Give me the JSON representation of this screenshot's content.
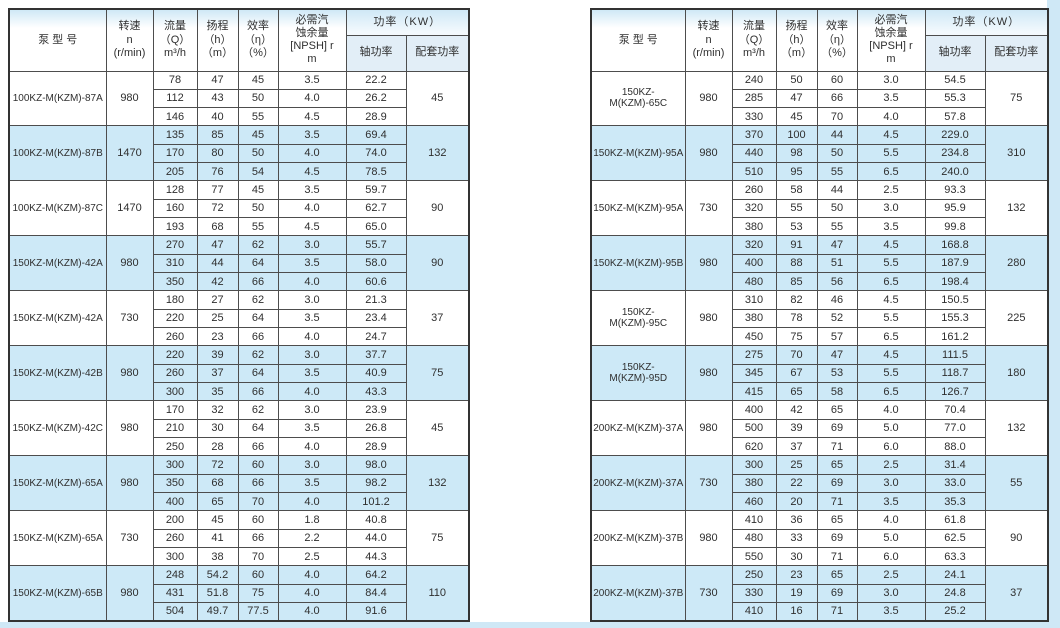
{
  "page": {
    "background_color": "#cfe8f6",
    "content_background": "#ffffff",
    "shaded_row_color": "#cde9f7",
    "subheader_color": "#e2eef7",
    "border_color": "#333333"
  },
  "header": {
    "model": "泵   型   号",
    "speed": "转速\nn\n(r/min)",
    "flow": "流量\n（Q）\nm³/h",
    "head": "扬程\n（h）\n（m）",
    "eff": "效率\n（η）\n（%）",
    "npsh": "必需汽\n蚀余量\n[NPSH] r\nm",
    "power_group": "功率（KW）",
    "shaft_power": "轴功率",
    "matching_power": "配套功率"
  },
  "tables": [
    {
      "name": "left-pump-table",
      "groups": [
        {
          "model": "100KZ-M(KZM)-87A",
          "speed": "980",
          "matching_power": "45",
          "shaded": false,
          "rows": [
            [
              "78",
              "47",
              "45",
              "3.5",
              "22.2"
            ],
            [
              "112",
              "43",
              "50",
              "4.0",
              "26.2"
            ],
            [
              "146",
              "40",
              "55",
              "4.5",
              "28.9"
            ]
          ]
        },
        {
          "model": "100KZ-M(KZM)-87B",
          "speed": "1470",
          "matching_power": "132",
          "shaded": true,
          "rows": [
            [
              "135",
              "85",
              "45",
              "3.5",
              "69.4"
            ],
            [
              "170",
              "80",
              "50",
              "4.0",
              "74.0"
            ],
            [
              "205",
              "76",
              "54",
              "4.5",
              "78.5"
            ]
          ]
        },
        {
          "model": "100KZ-M(KZM)-87C",
          "speed": "1470",
          "matching_power": "90",
          "shaded": false,
          "rows": [
            [
              "128",
              "77",
              "45",
              "3.5",
              "59.7"
            ],
            [
              "160",
              "72",
              "50",
              "4.0",
              "62.7"
            ],
            [
              "193",
              "68",
              "55",
              "4.5",
              "65.0"
            ]
          ]
        },
        {
          "model": "150KZ-M(KZM)-42A",
          "speed": "980",
          "matching_power": "90",
          "shaded": true,
          "rows": [
            [
              "270",
              "47",
              "62",
              "3.0",
              "55.7"
            ],
            [
              "310",
              "44",
              "64",
              "3.5",
              "58.0"
            ],
            [
              "350",
              "42",
              "66",
              "4.0",
              "60.6"
            ]
          ]
        },
        {
          "model": "150KZ-M(KZM)-42A",
          "speed": "730",
          "matching_power": "37",
          "shaded": false,
          "rows": [
            [
              "180",
              "27",
              "62",
              "3.0",
              "21.3"
            ],
            [
              "220",
              "25",
              "64",
              "3.5",
              "23.4"
            ],
            [
              "260",
              "23",
              "66",
              "4.0",
              "24.7"
            ]
          ]
        },
        {
          "model": "150KZ-M(KZM)-42B",
          "speed": "980",
          "matching_power": "75",
          "shaded": true,
          "rows": [
            [
              "220",
              "39",
              "62",
              "3.0",
              "37.7"
            ],
            [
              "260",
              "37",
              "64",
              "3.5",
              "40.9"
            ],
            [
              "300",
              "35",
              "66",
              "4.0",
              "43.3"
            ]
          ]
        },
        {
          "model": "150KZ-M(KZM)-42C",
          "speed": "980",
          "matching_power": "45",
          "shaded": false,
          "rows": [
            [
              "170",
              "32",
              "62",
              "3.0",
              "23.9"
            ],
            [
              "210",
              "30",
              "64",
              "3.5",
              "26.8"
            ],
            [
              "250",
              "28",
              "66",
              "4.0",
              "28.9"
            ]
          ]
        },
        {
          "model": "150KZ-M(KZM)-65A",
          "speed": "980",
          "matching_power": "132",
          "shaded": true,
          "rows": [
            [
              "300",
              "72",
              "60",
              "3.0",
              "98.0"
            ],
            [
              "350",
              "68",
              "66",
              "3.5",
              "98.2"
            ],
            [
              "400",
              "65",
              "70",
              "4.0",
              "101.2"
            ]
          ]
        },
        {
          "model": "150KZ-M(KZM)-65A",
          "speed": "730",
          "matching_power": "75",
          "shaded": false,
          "rows": [
            [
              "200",
              "45",
              "60",
              "1.8",
              "40.8"
            ],
            [
              "260",
              "41",
              "66",
              "2.2",
              "44.0"
            ],
            [
              "300",
              "38",
              "70",
              "2.5",
              "44.3"
            ]
          ]
        },
        {
          "model": "150KZ-M(KZM)-65B",
          "speed": "980",
          "matching_power": "110",
          "shaded": true,
          "rows": [
            [
              "248",
              "54.2",
              "60",
              "4.0",
              "64.2"
            ],
            [
              "431",
              "51.8",
              "75",
              "4.0",
              "84.4"
            ],
            [
              "504",
              "49.7",
              "77.5",
              "4.0",
              "91.6"
            ]
          ]
        }
      ]
    },
    {
      "name": "right-pump-table",
      "groups": [
        {
          "model": "150KZ-M(KZM)-65C",
          "speed": "980",
          "matching_power": "75",
          "shaded": false,
          "rows": [
            [
              "240",
              "50",
              "60",
              "3.0",
              "54.5"
            ],
            [
              "285",
              "47",
              "66",
              "3.5",
              "55.3"
            ],
            [
              "330",
              "45",
              "70",
              "4.0",
              "57.8"
            ]
          ]
        },
        {
          "model": "150KZ-M(KZM)-95A",
          "speed": "980",
          "matching_power": "310",
          "shaded": true,
          "rows": [
            [
              "370",
              "100",
              "44",
              "4.5",
              "229.0"
            ],
            [
              "440",
              "98",
              "50",
              "5.5",
              "234.8"
            ],
            [
              "510",
              "95",
              "55",
              "6.5",
              "240.0"
            ]
          ]
        },
        {
          "model": "150KZ-M(KZM)-95A",
          "speed": "730",
          "matching_power": "132",
          "shaded": false,
          "rows": [
            [
              "260",
              "58",
              "44",
              "2.5",
              "93.3"
            ],
            [
              "320",
              "55",
              "50",
              "3.0",
              "95.9"
            ],
            [
              "380",
              "53",
              "55",
              "3.5",
              "99.8"
            ]
          ]
        },
        {
          "model": "150KZ-M(KZM)-95B",
          "speed": "980",
          "matching_power": "280",
          "shaded": true,
          "rows": [
            [
              "320",
              "91",
              "47",
              "4.5",
              "168.8"
            ],
            [
              "400",
              "88",
              "51",
              "5.5",
              "187.9"
            ],
            [
              "480",
              "85",
              "56",
              "6.5",
              "198.4"
            ]
          ]
        },
        {
          "model": "150KZ-M(KZM)-95C",
          "speed": "980",
          "matching_power": "225",
          "shaded": false,
          "rows": [
            [
              "310",
              "82",
              "46",
              "4.5",
              "150.5"
            ],
            [
              "380",
              "78",
              "52",
              "5.5",
              "155.3"
            ],
            [
              "450",
              "75",
              "57",
              "6.5",
              "161.2"
            ]
          ]
        },
        {
          "model": "150KZ-M(KZM)-95D",
          "speed": "980",
          "matching_power": "180",
          "shaded": true,
          "rows": [
            [
              "275",
              "70",
              "47",
              "4.5",
              "111.5"
            ],
            [
              "345",
              "67",
              "53",
              "5.5",
              "118.7"
            ],
            [
              "415",
              "65",
              "58",
              "6.5",
              "126.7"
            ]
          ]
        },
        {
          "model": "200KZ-M(KZM)-37A",
          "speed": "980",
          "matching_power": "132",
          "shaded": false,
          "rows": [
            [
              "400",
              "42",
              "65",
              "4.0",
              "70.4"
            ],
            [
              "500",
              "39",
              "69",
              "5.0",
              "77.0"
            ],
            [
              "620",
              "37",
              "71",
              "6.0",
              "88.0"
            ]
          ]
        },
        {
          "model": "200KZ-M(KZM)-37A",
          "speed": "730",
          "matching_power": "55",
          "shaded": true,
          "rows": [
            [
              "300",
              "25",
              "65",
              "2.5",
              "31.4"
            ],
            [
              "380",
              "22",
              "69",
              "3.0",
              "33.0"
            ],
            [
              "460",
              "20",
              "71",
              "3.5",
              "35.3"
            ]
          ]
        },
        {
          "model": "200KZ-M(KZM)-37B",
          "speed": "980",
          "matching_power": "90",
          "shaded": false,
          "rows": [
            [
              "410",
              "36",
              "65",
              "4.0",
              "61.8"
            ],
            [
              "480",
              "33",
              "69",
              "5.0",
              "62.5"
            ],
            [
              "550",
              "30",
              "71",
              "6.0",
              "63.3"
            ]
          ]
        },
        {
          "model": "200KZ-M(KZM)-37B",
          "speed": "730",
          "matching_power": "37",
          "shaded": true,
          "rows": [
            [
              "250",
              "23",
              "65",
              "2.5",
              "24.1"
            ],
            [
              "330",
              "19",
              "69",
              "3.0",
              "24.8"
            ],
            [
              "410",
              "16",
              "71",
              "3.5",
              "25.2"
            ]
          ]
        }
      ]
    }
  ]
}
